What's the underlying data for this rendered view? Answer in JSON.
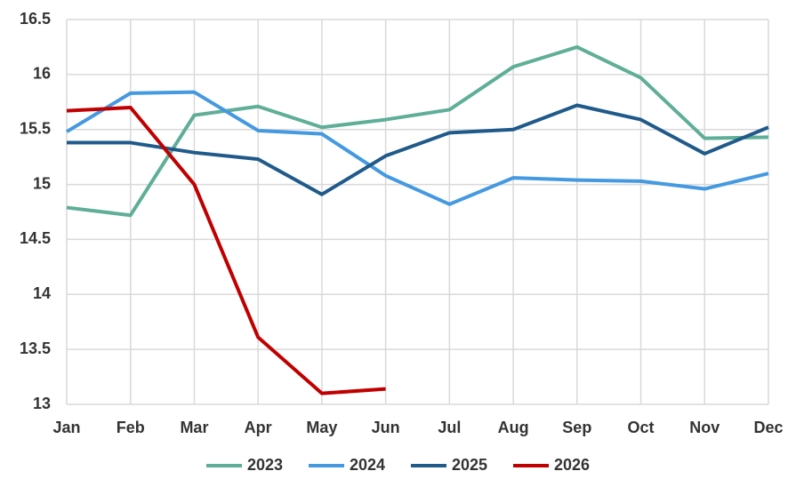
{
  "chart_data": {
    "type": "line",
    "categories": [
      "Jan",
      "Feb",
      "Mar",
      "Apr",
      "May",
      "Jun",
      "Jul",
      "Aug",
      "Sep",
      "Oct",
      "Nov",
      "Dec"
    ],
    "series": [
      {
        "name": "2023",
        "color": "#5fae97",
        "values": [
          14.79,
          14.72,
          15.63,
          15.71,
          15.52,
          15.59,
          15.68,
          16.07,
          16.25,
          15.97,
          15.42,
          15.43
        ]
      },
      {
        "name": "2024",
        "color": "#4499e0",
        "values": [
          15.48,
          15.83,
          15.84,
          15.49,
          15.46,
          15.08,
          14.82,
          15.06,
          15.04,
          15.03,
          14.96,
          15.1
        ]
      },
      {
        "name": "2025",
        "color": "#1f5a8a",
        "values": [
          15.38,
          15.38,
          15.29,
          15.23,
          14.91,
          15.26,
          15.47,
          15.5,
          15.72,
          15.59,
          15.28,
          15.52
        ]
      },
      {
        "name": "2026",
        "color": "#c00000",
        "values": [
          15.67,
          15.7,
          15.0,
          13.61,
          13.1,
          13.14,
          null,
          null,
          null,
          null,
          null,
          null
        ]
      }
    ],
    "ylim": [
      13,
      16.5
    ],
    "yticks": [
      13,
      13.5,
      14,
      14.5,
      15,
      15.5,
      16,
      16.5
    ],
    "grid": true,
    "legend": "bottom"
  }
}
